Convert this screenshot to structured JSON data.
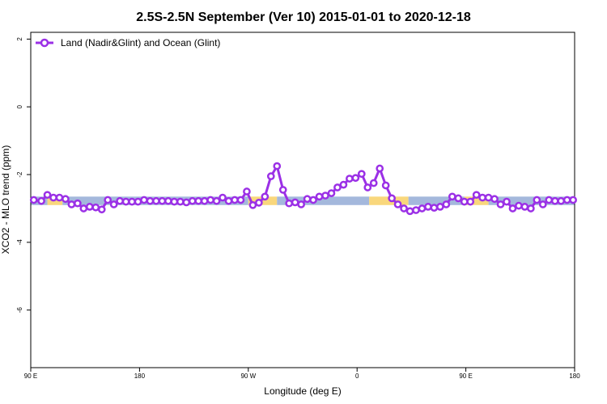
{
  "chart_data": {
    "type": "line",
    "title": "2.5S-2.5N September (Ver 10)   2015-01-01 to 2020-12-18",
    "xlabel": "Longitude (deg E)",
    "ylabel": "XCO2 - MLO trend (ppm)",
    "xlim": [
      90,
      450
    ],
    "ylim": [
      -7.7,
      2.2
    ],
    "y_ticks": [
      2,
      0,
      -2,
      -4,
      -6
    ],
    "x_ticks": [
      {
        "value": 90,
        "label": "90 E"
      },
      {
        "value": 162,
        "label": "180"
      },
      {
        "value": 234,
        "label": "90 W"
      },
      {
        "value": 306,
        "label": "0"
      },
      {
        "value": 378,
        "label": "90 E"
      },
      {
        "value": 450,
        "label": "180"
      }
    ],
    "grid": false,
    "legend": {
      "position": "top-left",
      "label": "Land (Nadir&Glint) and Ocean (Glint)"
    },
    "colors": {
      "series": "#9b30e6",
      "ocean": "#a4b8dc",
      "land": "#f9d77c"
    },
    "surface_band": {
      "y_top": -2.65,
      "y_bottom": -2.9,
      "segments": [
        {
          "type": "ocean",
          "x0": 90,
          "x1": 101
        },
        {
          "type": "land",
          "x0": 101,
          "x1": 111
        },
        {
          "type": "ocean",
          "x0": 111,
          "x1": 234
        },
        {
          "type": "land",
          "x0": 234,
          "x1": 253
        },
        {
          "type": "ocean",
          "x0": 253,
          "x1": 314
        },
        {
          "type": "land",
          "x0": 314,
          "x1": 340
        },
        {
          "type": "ocean",
          "x0": 340,
          "x1": 377
        },
        {
          "type": "land",
          "x0": 377,
          "x1": 393
        },
        {
          "type": "ocean",
          "x0": 393,
          "x1": 450
        }
      ]
    },
    "series": [
      {
        "name": "Land (Nadir&Glint) and Ocean (Glint)",
        "x": [
          92,
          97,
          101,
          105,
          109,
          113,
          117,
          121,
          125,
          129,
          133,
          137,
          141,
          145,
          149,
          153,
          157,
          161,
          165,
          169,
          173,
          177,
          181,
          185,
          189,
          193,
          197,
          201,
          205,
          209,
          213,
          217,
          221,
          225,
          229,
          233,
          237,
          241,
          245,
          249,
          253,
          257,
          261,
          265,
          269,
          273,
          277,
          281,
          285,
          289,
          293,
          297,
          301,
          305,
          309,
          313,
          317,
          321,
          325,
          329,
          333,
          337,
          341,
          345,
          349,
          353,
          357,
          361,
          365,
          369,
          373,
          377,
          381,
          385,
          389,
          393,
          397,
          401,
          405,
          409,
          413,
          417,
          421,
          425,
          429,
          433,
          437,
          441,
          445,
          449
        ],
        "values": [
          -2.75,
          -2.78,
          -2.6,
          -2.68,
          -2.68,
          -2.72,
          -2.88,
          -2.85,
          -3.0,
          -2.95,
          -2.97,
          -3.03,
          -2.75,
          -2.88,
          -2.78,
          -2.8,
          -2.8,
          -2.8,
          -2.75,
          -2.78,
          -2.78,
          -2.78,
          -2.78,
          -2.8,
          -2.8,
          -2.82,
          -2.78,
          -2.78,
          -2.78,
          -2.75,
          -2.78,
          -2.68,
          -2.78,
          -2.75,
          -2.75,
          -2.5,
          -2.9,
          -2.83,
          -2.65,
          -2.05,
          -1.75,
          -2.45,
          -2.85,
          -2.82,
          -2.88,
          -2.72,
          -2.75,
          -2.65,
          -2.62,
          -2.55,
          -2.38,
          -2.3,
          -2.12,
          -2.1,
          -1.98,
          -2.38,
          -2.25,
          -1.82,
          -2.32,
          -2.7,
          -2.88,
          -3.0,
          -3.08,
          -3.05,
          -3.0,
          -2.95,
          -2.98,
          -2.95,
          -2.88,
          -2.65,
          -2.7,
          -2.8,
          -2.8,
          -2.6,
          -2.68,
          -2.68,
          -2.72,
          -2.88,
          -2.8,
          -3.0,
          -2.92,
          -2.95,
          -3.0,
          -2.75,
          -2.88,
          -2.75,
          -2.78,
          -2.78,
          -2.75,
          -2.75
        ]
      }
    ]
  }
}
